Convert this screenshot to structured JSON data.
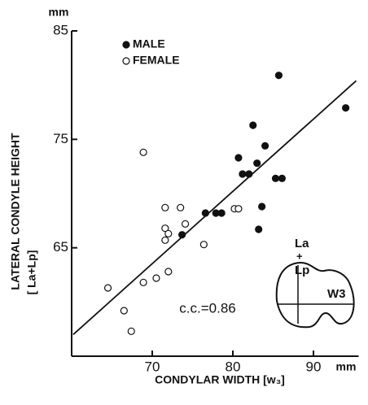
{
  "chart_data": {
    "type": "scatter",
    "y_unit": "mm",
    "x_unit": "mm",
    "ylabel": "LATERAL CONDYLE HEIGHT",
    "ylabel_sub": "[ La+Lp]",
    "xlabel": "CONDYLAR WIDTH [w₃]",
    "annotation": "c.c.=0.86",
    "inset_labels": [
      "La",
      "+",
      "Lp",
      "W3"
    ],
    "xlim": [
      60,
      95
    ],
    "ylim": [
      55,
      85
    ],
    "xticks": [
      70,
      80,
      90
    ],
    "yticks": [
      65,
      75,
      85
    ],
    "legend": "top-left",
    "series": [
      {
        "name": "MALE",
        "color": "#111111",
        "filled": true,
        "x": [
          85.7,
          94.0,
          82.5,
          84.0,
          80.7,
          83.0,
          81.2,
          82.0,
          85.3,
          86.1,
          76.6,
          77.9,
          78.6,
          83.6,
          83.2,
          73.7
        ],
        "values": [
          80.9,
          77.9,
          76.3,
          74.4,
          73.3,
          72.8,
          71.8,
          71.8,
          71.4,
          71.4,
          68.2,
          68.2,
          68.2,
          68.8,
          66.7,
          66.2
        ]
      },
      {
        "name": "FEMALE",
        "color": "#111111",
        "filled": false,
        "x": [
          68.9,
          71.6,
          73.5,
          80.2,
          80.7,
          74.1,
          71.6,
          72.0,
          71.6,
          76.4,
          72.0,
          70.5,
          68.9,
          64.5,
          66.5,
          67.4
        ],
        "values": [
          73.8,
          68.7,
          68.7,
          68.6,
          68.6,
          67.2,
          66.8,
          66.3,
          65.7,
          65.3,
          62.8,
          62.2,
          61.8,
          61.3,
          59.2,
          57.3
        ]
      }
    ],
    "fit_line": {
      "x": [
        60.2,
        95.3
      ],
      "values": [
        57.0,
        80.4
      ]
    }
  }
}
